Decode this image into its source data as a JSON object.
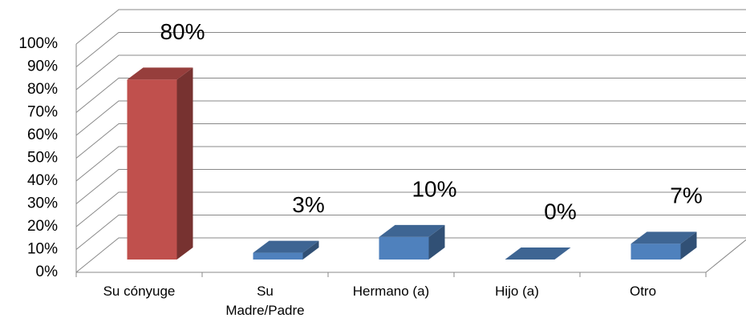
{
  "chart_data": {
    "type": "bar3d",
    "categories": [
      "Su cónyuge",
      "Su Madre/Padre",
      "Hermano (a)",
      "Hijo (a)",
      "Otro"
    ],
    "values": [
      80,
      3,
      10,
      0,
      7
    ],
    "value_labels": [
      "80%",
      "3%",
      "10%",
      "0%",
      "7%"
    ],
    "colors": [
      "#c0504d",
      "#4f81bd",
      "#4f81bd",
      "#4f81bd",
      "#4f81bd"
    ],
    "ylim": [
      0,
      100
    ],
    "yticks": [
      {
        "value": 0,
        "label": "0%"
      },
      {
        "value": 10,
        "label": "10%"
      },
      {
        "value": 20,
        "label": "20%"
      },
      {
        "value": 30,
        "label": "30%"
      },
      {
        "value": 40,
        "label": "40%"
      },
      {
        "value": 50,
        "label": "50%"
      },
      {
        "value": 60,
        "label": "60%"
      },
      {
        "value": 70,
        "label": "70%"
      },
      {
        "value": 80,
        "label": "80%"
      },
      {
        "value": 90,
        "label": "90%"
      },
      {
        "value": 100,
        "label": "100%"
      }
    ],
    "grid": true
  }
}
